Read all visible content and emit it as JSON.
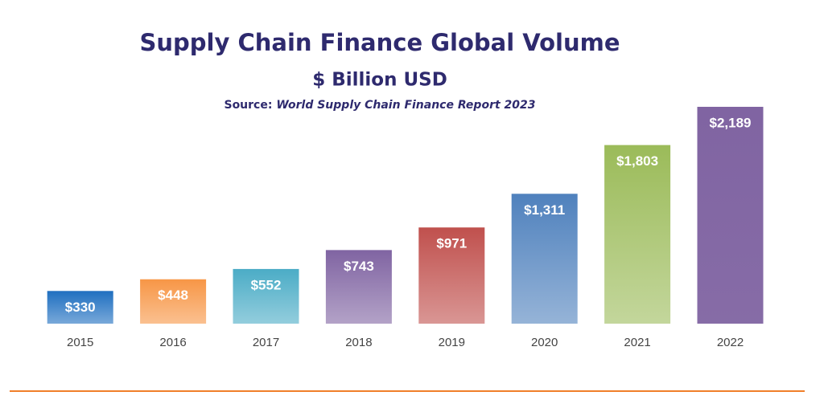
{
  "chart_data": {
    "type": "bar",
    "title": "Supply Chain Finance Global Volume",
    "subtitle": "$ Billion USD",
    "source_label": "Source:",
    "source": "World Supply Chain Finance Report 2023",
    "categories": [
      "2015",
      "2016",
      "2017",
      "2018",
      "2019",
      "2020",
      "2021",
      "2022"
    ],
    "values": [
      330,
      448,
      552,
      743,
      971,
      1311,
      1803,
      2189
    ],
    "value_labels": [
      "$330",
      "$448",
      "$552",
      "$743",
      "$971",
      "$1,311",
      "$1,803",
      "$2,189"
    ],
    "colors": [
      "#1f6fc0",
      "#f79646",
      "#4bacc6",
      "#8064a2",
      "#c0504d",
      "#4f81bd",
      "#9bbb59",
      "#8064a2"
    ]
  }
}
